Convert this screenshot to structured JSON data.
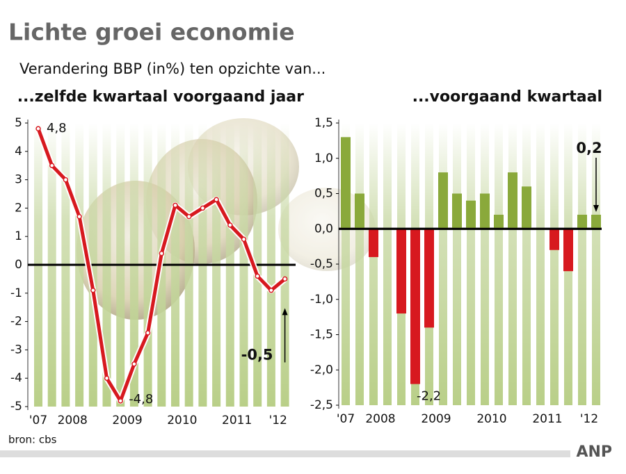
{
  "header": {
    "title": "Lichte groei economie",
    "subtitle": "Verandering BBP (in%) ten opzichte van..."
  },
  "source": "bron: cbs",
  "logo": "ANP",
  "chart_data": [
    {
      "type": "line",
      "title": "...zelfde kwartaal voorgaand jaar",
      "color": "#d7191f",
      "values": [
        4.8,
        3.5,
        3.0,
        1.7,
        -0.9,
        -4.0,
        -4.8,
        -3.5,
        -2.4,
        0.4,
        2.1,
        1.7,
        2.0,
        2.3,
        1.4,
        0.9,
        -0.4,
        -0.9,
        -0.5
      ],
      "value_labels": [
        "4,8",
        null,
        null,
        null,
        null,
        null,
        "-4,8",
        null,
        null,
        null,
        null,
        null,
        null,
        null,
        null,
        null,
        null,
        null,
        "-0,5"
      ],
      "ylim": [
        -5,
        5
      ],
      "yticks": [
        5,
        4,
        3,
        2,
        1,
        0,
        -1,
        -2,
        -3,
        -4,
        -5
      ],
      "xticks": [
        {
          "value": 0,
          "label": "'07"
        },
        {
          "value": 2.5,
          "label": "2008"
        },
        {
          "value": 6.5,
          "label": "2009"
        },
        {
          "value": 10.5,
          "label": "2010"
        },
        {
          "value": 14.5,
          "label": "2011"
        },
        {
          "value": 17.5,
          "label": "'12"
        }
      ]
    },
    {
      "type": "bar",
      "title": "...voorgaand kwartaal",
      "color": "#8aa93b",
      "negative_color": "#d7191f",
      "values": [
        1.3,
        0.5,
        -0.4,
        0.0,
        -1.2,
        -2.2,
        -1.4,
        0.8,
        0.5,
        0.4,
        0.5,
        0.2,
        0.8,
        0.6,
        0.0,
        -0.3,
        -0.6,
        0.2,
        0.2
      ],
      "value_labels": [
        null,
        null,
        null,
        null,
        null,
        "-2,2",
        null,
        null,
        null,
        null,
        null,
        null,
        null,
        null,
        null,
        null,
        null,
        null,
        "0,2"
      ],
      "ylim": [
        -2.5,
        1.5
      ],
      "yticks": [
        {
          "value": 1.5,
          "label": "1,5"
        },
        {
          "value": 1.0,
          "label": "1,0"
        },
        {
          "value": 0.5,
          "label": "0,5"
        },
        {
          "value": 0.0,
          "label": "0,0"
        },
        {
          "value": -0.5,
          "label": "-0,5"
        },
        {
          "value": -1.0,
          "label": "-1,0"
        },
        {
          "value": -1.5,
          "label": "-1,5"
        },
        {
          "value": -2.0,
          "label": "-2,0"
        },
        {
          "value": -2.5,
          "label": "-2,5"
        }
      ],
      "xticks": [
        {
          "value": 0,
          "label": "'07"
        },
        {
          "value": 2.5,
          "label": "2008"
        },
        {
          "value": 6.5,
          "label": "2009"
        },
        {
          "value": 10.5,
          "label": "2010"
        },
        {
          "value": 14.5,
          "label": "2011"
        },
        {
          "value": 17.5,
          "label": "'12"
        }
      ]
    }
  ]
}
